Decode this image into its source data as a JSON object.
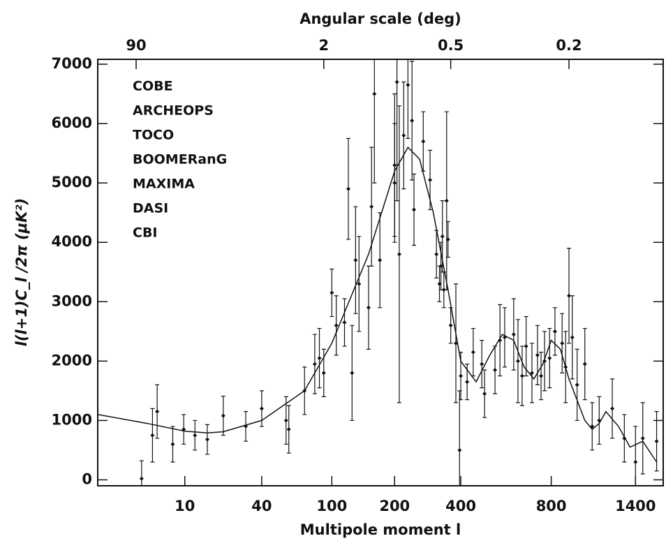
{
  "chart_data": {
    "type": "errorbar-scatter",
    "title": "Angular scale (deg)",
    "x_label": "Multipole moment l",
    "y_label": "l(l+1)C_l /2π (μK²)",
    "legend_labels": [
      "COBE",
      "ARCHEOPS",
      "TOCO",
      "BOOMERanG",
      "MAXIMA",
      "DASI",
      "CBI"
    ],
    "xlim": [
      2,
      1600
    ],
    "xticks": [
      10,
      40,
      100,
      200,
      400,
      800,
      1400
    ],
    "x2ticks": [
      90,
      2,
      0.5,
      0.2
    ],
    "ylim": [
      -100,
      7000
    ],
    "yticks": [
      0,
      1000,
      2000,
      3000,
      4000,
      5000,
      6000,
      7000
    ],
    "color": "#111111",
    "x": [
      4.5,
      5.5,
      6,
      8,
      9.8,
      12,
      15,
      20,
      30,
      40,
      55,
      57,
      70,
      80,
      85,
      90,
      100,
      105,
      115,
      120,
      125,
      130,
      135,
      150,
      155,
      160,
      170,
      200,
      200,
      205,
      210,
      220,
      230,
      240,
      245,
      270,
      290,
      310,
      320,
      325,
      330,
      335,
      345,
      350,
      360,
      380,
      395,
      400,
      420,
      440,
      470,
      480,
      520,
      540,
      560,
      600,
      620,
      640,
      660,
      690,
      720,
      740,
      760,
      790,
      820,
      860,
      880,
      900,
      920,
      950,
      1000,
      1050,
      1100,
      1200,
      1300,
      1400,
      1450,
      1550
    ],
    "values": [
      20,
      750,
      1150,
      600,
      850,
      750,
      680,
      1080,
      900,
      1200,
      1000,
      850,
      1500,
      1950,
      2050,
      1800,
      3150,
      2600,
      2650,
      4900,
      1800,
      3700,
      3300,
      2900,
      4600,
      6500,
      3700,
      5300,
      5000,
      6700,
      3800,
      5800,
      6650,
      6050,
      4550,
      5700,
      5050,
      3800,
      3300,
      3600,
      4100,
      3200,
      4700,
      4050,
      2600,
      2300,
      500,
      1750,
      1650,
      2150,
      1950,
      1450,
      1850,
      2350,
      2400,
      2450,
      2000,
      1750,
      2250,
      1800,
      2100,
      1750,
      2000,
      2050,
      2500,
      2300,
      1900,
      3100,
      2400,
      1600,
      1950,
      900,
      1000,
      1200,
      700,
      300,
      700,
      650
    ],
    "errors": [
      300,
      450,
      450,
      300,
      250,
      250,
      250,
      330,
      250,
      300,
      400,
      400,
      400,
      500,
      500,
      400,
      400,
      500,
      400,
      850,
      800,
      900,
      800,
      700,
      1000,
      1500,
      800,
      1200,
      1000,
      2000,
      2500,
      900,
      900,
      1000,
      600,
      500,
      500,
      400,
      300,
      400,
      600,
      300,
      1500,
      300,
      300,
      1000,
      1000,
      400,
      300,
      400,
      400,
      400,
      400,
      600,
      500,
      600,
      700,
      500,
      500,
      500,
      500,
      400,
      500,
      500,
      400,
      500,
      600,
      800,
      700,
      600,
      600,
      400,
      400,
      500,
      400,
      600,
      600,
      500
    ],
    "curve": {
      "x": [
        2,
        5,
        10,
        15,
        20,
        40,
        70,
        100,
        150,
        200,
        230,
        260,
        300,
        350,
        400,
        450,
        500,
        550,
        600,
        650,
        700,
        750,
        800,
        850,
        900,
        1000,
        1050,
        1100,
        1150,
        1250,
        1350,
        1450,
        1550
      ],
      "values": [
        1100,
        950,
        820,
        790,
        810,
        1000,
        1500,
        2300,
        3800,
        5200,
        5600,
        5400,
        4500,
        3200,
        2000,
        1650,
        2100,
        2450,
        2350,
        1900,
        1700,
        1950,
        2350,
        2200,
        1700,
        1000,
        850,
        950,
        1150,
        900,
        550,
        650,
        300
      ]
    }
  }
}
